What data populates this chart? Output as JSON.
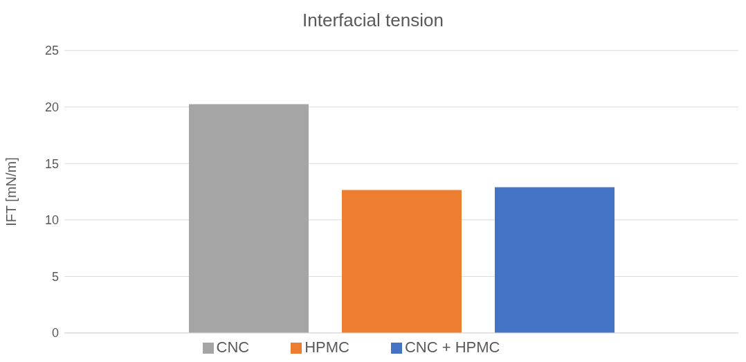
{
  "chart_data": {
    "type": "bar",
    "title": "Interfacial tension",
    "ylabel": "IFT [mN/m]",
    "categories": [
      null
    ],
    "series": [
      {
        "name": "CNC",
        "color": "#a5a5a5",
        "values": [
          20.25
        ]
      },
      {
        "name": "HPMC",
        "color": "#ed7d31",
        "values": [
          12.65
        ]
      },
      {
        "name": "CNC + HPMC",
        "color": "#4472c4",
        "values": [
          12.9
        ]
      }
    ],
    "ylim": [
      0,
      25
    ],
    "yticks": [
      0,
      5,
      10,
      15,
      20,
      25
    ],
    "grid": "y",
    "legend": "bottom"
  }
}
